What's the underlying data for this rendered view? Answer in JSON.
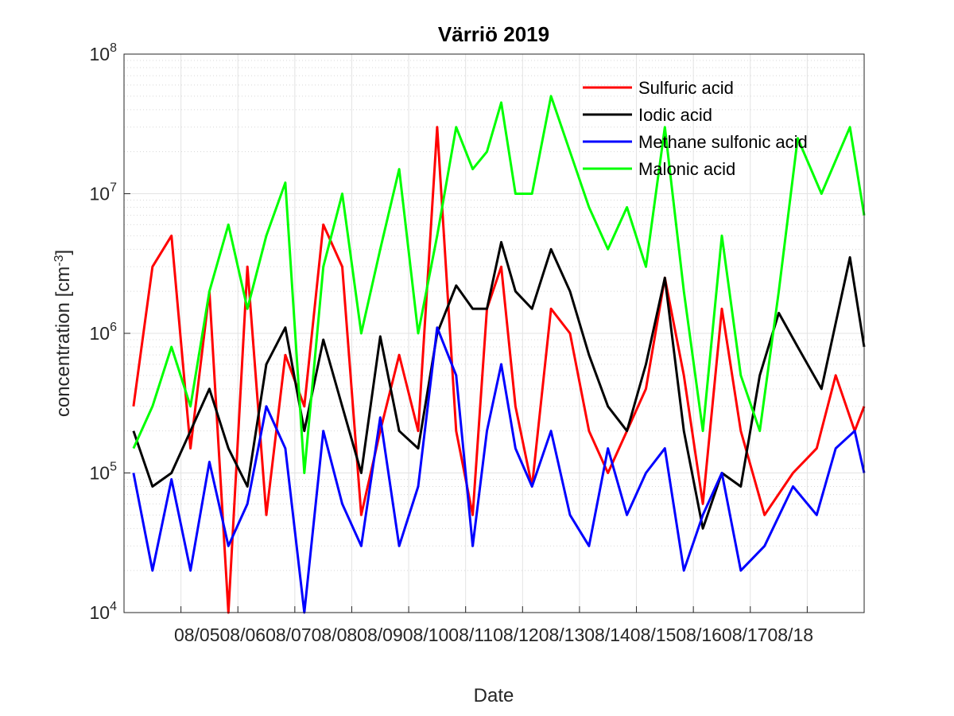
{
  "chart_data": {
    "type": "line",
    "title": "Värriö 2019",
    "xlabel": "Date",
    "ylabel": "concentration [cm",
    "ylabel_exp": "-3",
    "ylabel_tail": "]",
    "y_scale": "log",
    "ylim": [
      10000,
      100000000
    ],
    "y_tick_base": "10",
    "y_ticks": [
      {
        "value": 10000,
        "exp": "4"
      },
      {
        "value": 100000,
        "exp": "5"
      },
      {
        "value": 1000000,
        "exp": "6"
      },
      {
        "value": 10000000,
        "exp": "7"
      },
      {
        "value": 100000000,
        "exp": "8"
      }
    ],
    "x_categories": [
      "08/05",
      "08/06",
      "08/07",
      "08/08",
      "08/09",
      "08/10",
      "08/11",
      "08/12",
      "08/13",
      "08/14",
      "08/15",
      "08/16",
      "08/17",
      "08/18"
    ],
    "x_tick_text": "08/0508/0608/0708/0808/0908/1008/1108/1208/1308/1408/1508/1608/1708/18",
    "xlim": [
      "08/05",
      "08/18"
    ],
    "grid": true,
    "minor_grid": true,
    "legend_position": "top-right",
    "series": [
      {
        "name": "Sulfuric acid",
        "color": "#ff0000",
        "points": [
          [
            "08/05",
            300000
          ],
          [
            "08/05",
            3000000
          ],
          [
            "08/05",
            5000000
          ],
          [
            "08/06",
            150000
          ],
          [
            "08/06",
            2000000
          ],
          [
            "08/06",
            10000
          ],
          [
            "08/07",
            3000000
          ],
          [
            "08/07",
            50000
          ],
          [
            "08/07",
            700000
          ],
          [
            "08/08",
            300000
          ],
          [
            "08/08",
            6000000
          ],
          [
            "08/08",
            3000000
          ],
          [
            "08/09",
            50000
          ],
          [
            "08/09",
            200000
          ],
          [
            "08/09",
            700000
          ],
          [
            "08/10",
            200000
          ],
          [
            "08/10",
            30000000
          ],
          [
            "08/10",
            200000
          ],
          [
            "08/11",
            50000
          ],
          [
            "08/11",
            1500000
          ],
          [
            "08/11",
            3000000
          ],
          [
            "08/11",
            300000
          ],
          [
            "08/12",
            80000
          ],
          [
            "08/12",
            1500000
          ],
          [
            "08/12",
            1000000
          ],
          [
            "08/13",
            200000
          ],
          [
            "08/13",
            100000
          ],
          [
            "08/13",
            200000
          ],
          [
            "08/14",
            400000
          ],
          [
            "08/14",
            2500000
          ],
          [
            "08/14",
            500000
          ],
          [
            "08/15",
            60000
          ],
          [
            "08/15",
            1500000
          ],
          [
            "08/15",
            200000
          ],
          [
            "08/16",
            50000
          ],
          [
            "08/16",
            100000
          ],
          [
            "08/17",
            150000
          ],
          [
            "08/17",
            500000
          ],
          [
            "08/17",
            200000
          ],
          [
            "08/18",
            300000
          ]
        ]
      },
      {
        "name": "Iodic acid",
        "color": "#000000",
        "points": [
          [
            "08/05",
            200000
          ],
          [
            "08/05",
            80000
          ],
          [
            "08/05",
            100000
          ],
          [
            "08/06",
            200000
          ],
          [
            "08/06",
            400000
          ],
          [
            "08/06",
            150000
          ],
          [
            "08/07",
            80000
          ],
          [
            "08/07",
            600000
          ],
          [
            "08/07",
            1100000
          ],
          [
            "08/08",
            200000
          ],
          [
            "08/08",
            900000
          ],
          [
            "08/08",
            300000
          ],
          [
            "08/09",
            100000
          ],
          [
            "08/09",
            950000
          ],
          [
            "08/09",
            200000
          ],
          [
            "08/10",
            150000
          ],
          [
            "08/10",
            1000000
          ],
          [
            "08/10",
            2200000
          ],
          [
            "08/11",
            1500000
          ],
          [
            "08/11",
            1500000
          ],
          [
            "08/11",
            4500000
          ],
          [
            "08/11",
            2000000
          ],
          [
            "08/12",
            1500000
          ],
          [
            "08/12",
            4000000
          ],
          [
            "08/12",
            2000000
          ],
          [
            "08/13",
            700000
          ],
          [
            "08/13",
            300000
          ],
          [
            "08/13",
            200000
          ],
          [
            "08/14",
            600000
          ],
          [
            "08/14",
            2500000
          ],
          [
            "08/14",
            200000
          ],
          [
            "08/15",
            40000
          ],
          [
            "08/15",
            100000
          ],
          [
            "08/15",
            80000
          ],
          [
            "08/16",
            500000
          ],
          [
            "08/16",
            1400000
          ],
          [
            "08/16",
            800000
          ],
          [
            "08/17",
            400000
          ],
          [
            "08/17",
            3500000
          ],
          [
            "08/18",
            800000
          ]
        ]
      },
      {
        "name": "Methane sulfonic acid",
        "color": "#0000ff",
        "points": [
          [
            "08/05",
            100000
          ],
          [
            "08/05",
            20000
          ],
          [
            "08/05",
            90000
          ],
          [
            "08/06",
            20000
          ],
          [
            "08/06",
            120000
          ],
          [
            "08/06",
            30000
          ],
          [
            "08/07",
            60000
          ],
          [
            "08/07",
            300000
          ],
          [
            "08/07",
            150000
          ],
          [
            "08/08",
            10000
          ],
          [
            "08/08",
            200000
          ],
          [
            "08/08",
            60000
          ],
          [
            "08/09",
            30000
          ],
          [
            "08/09",
            250000
          ],
          [
            "08/09",
            30000
          ],
          [
            "08/10",
            80000
          ],
          [
            "08/10",
            1100000
          ],
          [
            "08/10",
            500000
          ],
          [
            "08/11",
            30000
          ],
          [
            "08/11",
            200000
          ],
          [
            "08/11",
            600000
          ],
          [
            "08/11",
            150000
          ],
          [
            "08/12",
            80000
          ],
          [
            "08/12",
            200000
          ],
          [
            "08/12",
            50000
          ],
          [
            "08/13",
            30000
          ],
          [
            "08/13",
            150000
          ],
          [
            "08/13",
            50000
          ],
          [
            "08/14",
            100000
          ],
          [
            "08/14",
            150000
          ],
          [
            "08/14",
            20000
          ],
          [
            "08/15",
            50000
          ],
          [
            "08/15",
            100000
          ],
          [
            "08/15",
            20000
          ],
          [
            "08/16",
            30000
          ],
          [
            "08/16",
            80000
          ],
          [
            "08/17",
            50000
          ],
          [
            "08/17",
            150000
          ],
          [
            "08/17",
            200000
          ],
          [
            "08/18",
            100000
          ]
        ]
      },
      {
        "name": "Malonic acid",
        "color": "#00ff00",
        "points": [
          [
            "08/05",
            150000
          ],
          [
            "08/05",
            300000
          ],
          [
            "08/05",
            800000
          ],
          [
            "08/06",
            300000
          ],
          [
            "08/06",
            2000000
          ],
          [
            "08/06",
            6000000
          ],
          [
            "08/07",
            1500000
          ],
          [
            "08/07",
            5000000
          ],
          [
            "08/07",
            12000000
          ],
          [
            "08/08",
            100000
          ],
          [
            "08/08",
            3000000
          ],
          [
            "08/08",
            10000000
          ],
          [
            "08/09",
            1000000
          ],
          [
            "08/09",
            4000000
          ],
          [
            "08/09",
            15000000
          ],
          [
            "08/10",
            1000000
          ],
          [
            "08/10",
            5000000
          ],
          [
            "08/10",
            30000000
          ],
          [
            "08/11",
            15000000
          ],
          [
            "08/11",
            20000000
          ],
          [
            "08/11",
            45000000
          ],
          [
            "08/11",
            10000000
          ],
          [
            "08/12",
            10000000
          ],
          [
            "08/12",
            50000000
          ],
          [
            "08/12",
            20000000
          ],
          [
            "08/13",
            8000000
          ],
          [
            "08/13",
            4000000
          ],
          [
            "08/13",
            8000000
          ],
          [
            "08/14",
            3000000
          ],
          [
            "08/14",
            30000000
          ],
          [
            "08/14",
            2000000
          ],
          [
            "08/15",
            200000
          ],
          [
            "08/15",
            5000000
          ],
          [
            "08/15",
            500000
          ],
          [
            "08/16",
            200000
          ],
          [
            "08/16",
            2000000
          ],
          [
            "08/16",
            25000000
          ],
          [
            "08/17",
            10000000
          ],
          [
            "08/17",
            30000000
          ],
          [
            "08/18",
            7000000
          ]
        ]
      }
    ]
  }
}
